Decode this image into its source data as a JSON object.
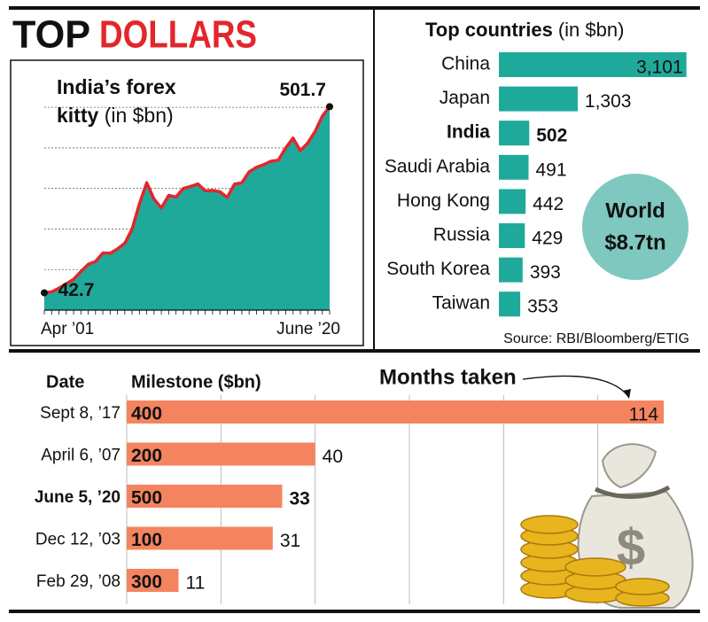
{
  "header": {
    "title_1": "TOP",
    "title_2": "DOLLARS"
  },
  "source": "Source: RBI/Bloomberg/ETIG",
  "chart_data": [
    {
      "type": "area",
      "title": "India’s forex kitty",
      "subtitle": "(in $bn)",
      "categories": [
        "Apr ’01",
        null,
        null,
        null,
        null,
        null,
        null,
        null,
        null,
        null,
        null,
        null,
        null,
        null,
        null,
        null,
        null,
        null,
        null,
        null,
        null,
        null,
        null,
        null,
        null,
        null,
        null,
        null,
        null,
        null,
        null,
        null,
        null,
        null,
        null,
        null,
        null,
        null,
        null,
        "June ’20"
      ],
      "values": [
        42.7,
        45,
        54,
        65,
        76,
        95,
        113,
        120,
        141,
        140,
        151,
        165,
        200,
        262,
        314,
        274,
        252,
        283,
        279,
        300,
        305,
        311,
        294,
        295,
        292,
        278,
        311,
        314,
        341,
        352,
        359,
        367,
        370,
        400,
        424,
        393,
        412,
        440,
        478,
        501.7
      ],
      "color": "#1fa99a",
      "line_color": "#e3262b",
      "ylim": [
        0,
        520
      ],
      "yticks": [
        0,
        100,
        200,
        300,
        400,
        500
      ],
      "grid": true
    },
    {
      "type": "hbar",
      "title": "Top countries",
      "subtitle": "(in $bn)",
      "categories": [
        "China",
        "Japan",
        "India",
        "Saudi Arabia",
        "Hong Kong",
        "Russia",
        "South Korea",
        "Taiwan"
      ],
      "values": [
        3101,
        1303,
        502,
        491,
        442,
        429,
        393,
        353
      ],
      "value_labels": [
        "3,101",
        "1,303",
        "502",
        "491",
        "442",
        "429",
        "393",
        "353"
      ],
      "highlight": "India",
      "color": "#1fa99a",
      "xlim": [
        0,
        3150
      ],
      "annotation": {
        "line_1": "World",
        "line_2": "$8.7tn",
        "color": "#7fc8bf"
      }
    },
    {
      "type": "hbar",
      "title": "Months taken",
      "date_header": "Date",
      "milestone_header": "Milestone ($bn)",
      "categories": [
        "Sept 8, ’17",
        "April 6, ’07",
        "June 5, ’20",
        "Dec 12, ’03",
        "Feb 29, ’08"
      ],
      "milestones": [
        400,
        200,
        500,
        100,
        300
      ],
      "values": [
        114,
        40,
        33,
        31,
        11
      ],
      "highlight": "June 5, ’20",
      "color": "#f4845f",
      "xlim": [
        0,
        120
      ],
      "xticks": [
        0,
        20,
        40,
        60,
        80,
        100
      ],
      "grid": true
    }
  ]
}
